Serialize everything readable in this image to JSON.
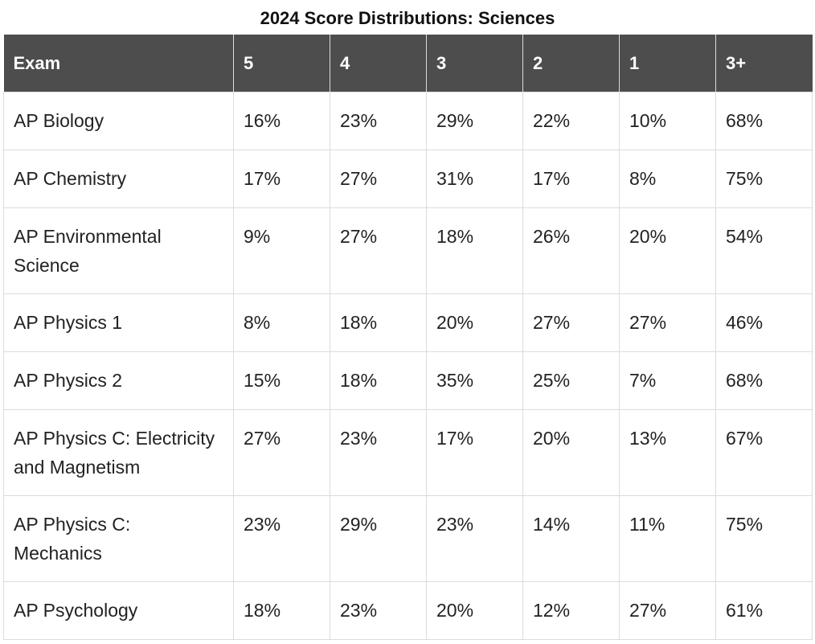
{
  "caption": "2024 Score Distributions: Sciences",
  "headers": [
    "Exam",
    "5",
    "4",
    "3",
    "2",
    "1",
    "3+"
  ],
  "rows": [
    {
      "exam": "AP Biology",
      "s5": "16%",
      "s4": "23%",
      "s3": "29%",
      "s2": "22%",
      "s1": "10%",
      "s3plus": "68%"
    },
    {
      "exam": "AP Chemistry",
      "s5": "17%",
      "s4": "27%",
      "s3": "31%",
      "s2": "17%",
      "s1": "8%",
      "s3plus": "75%"
    },
    {
      "exam": "AP Environmental Science",
      "s5": "9%",
      "s4": "27%",
      "s3": "18%",
      "s2": "26%",
      "s1": "20%",
      "s3plus": "54%"
    },
    {
      "exam": "AP Physics 1",
      "s5": "8%",
      "s4": "18%",
      "s3": "20%",
      "s2": "27%",
      "s1": "27%",
      "s3plus": "46%"
    },
    {
      "exam": "AP Physics 2",
      "s5": "15%",
      "s4": "18%",
      "s3": "35%",
      "s2": "25%",
      "s1": "7%",
      "s3plus": "68%"
    },
    {
      "exam": "AP Physics C: Electricity and Magnetism",
      "s5": "27%",
      "s4": "23%",
      "s3": "17%",
      "s2": "20%",
      "s1": "13%",
      "s3plus": "67%"
    },
    {
      "exam": "AP Physics C: Mechanics",
      "s5": "23%",
      "s4": "29%",
      "s3": "23%",
      "s2": "14%",
      "s1": "11%",
      "s3plus": "75%"
    },
    {
      "exam": "AP Psychology",
      "s5": "18%",
      "s4": "23%",
      "s3": "20%",
      "s2": "12%",
      "s1": "27%",
      "s3plus": "61%"
    }
  ],
  "colors": {
    "header_bg": "#4d4d4d",
    "header_text": "#ffffff",
    "border": "#dcdcdc"
  }
}
